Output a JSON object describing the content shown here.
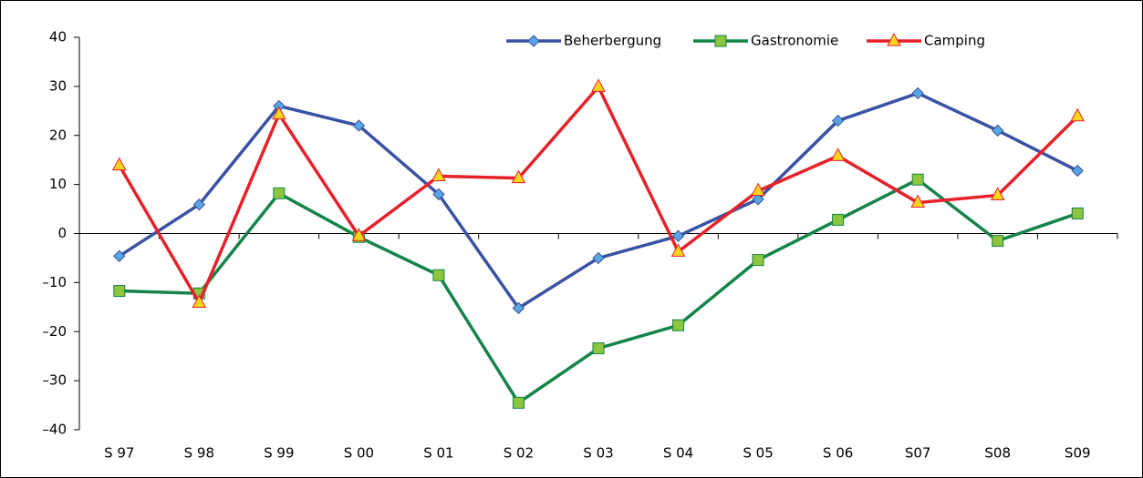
{
  "chart_data": {
    "type": "line",
    "categories": [
      "S 97",
      "S 98",
      "S 99",
      "S 00",
      "S 01",
      "S 02",
      "S 03",
      "S 04",
      "S 05",
      "S 06",
      "S07",
      "S08",
      "S09"
    ],
    "series": [
      {
        "name": "Beherbergung",
        "color": "#3a52a3",
        "marker": "diamond",
        "marker_color": "#56a6e3",
        "values": [
          -4.6,
          5.9,
          26,
          22,
          8,
          -15.2,
          -5,
          -0.5,
          7,
          23,
          28.6,
          21,
          12.8
        ]
      },
      {
        "name": "Gastronomie",
        "color": "#15834a",
        "marker": "square",
        "marker_color": "#8cc63e",
        "values": [
          -11.7,
          -12.2,
          8.2,
          -0.7,
          -8.5,
          -34.5,
          -23.4,
          -18.7,
          -5.4,
          2.8,
          11,
          -1.5,
          4.1
        ]
      },
      {
        "name": "Camping",
        "color": "#e62129",
        "marker": "triangle",
        "marker_color": "#f7d51d",
        "values": [
          13.9,
          -14.1,
          24.3,
          -0.5,
          11.7,
          11.3,
          29.9,
          -3.7,
          8.7,
          15.8,
          6.3,
          7.8,
          23.9
        ]
      }
    ],
    "ylim": [
      -40,
      40
    ],
    "yticks": [
      {
        "value": -40,
        "label": "–40"
      },
      {
        "value": -30,
        "label": "–30"
      },
      {
        "value": -20,
        "label": "–20"
      },
      {
        "value": -10,
        "label": "–10"
      },
      0,
      10,
      20,
      30,
      40
    ],
    "legend": "top"
  }
}
